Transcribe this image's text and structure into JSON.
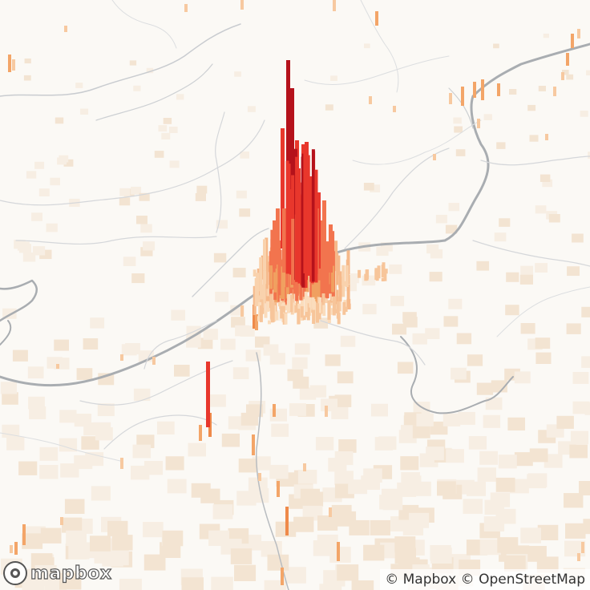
{
  "map": {
    "logo_text": "mapbox",
    "attribution": {
      "prefix": "© ",
      "mapbox": "Mapbox",
      "sep": " © ",
      "osm": "OpenStreetMap"
    },
    "colors": {
      "background": "#fbf9f5",
      "grid_cell": "#f4e9db",
      "boundary": "#9aa0a6",
      "low": "#f7c9a0",
      "mid": "#f0a060",
      "high": "#e8372c",
      "peak": "#b5121b"
    }
  }
}
